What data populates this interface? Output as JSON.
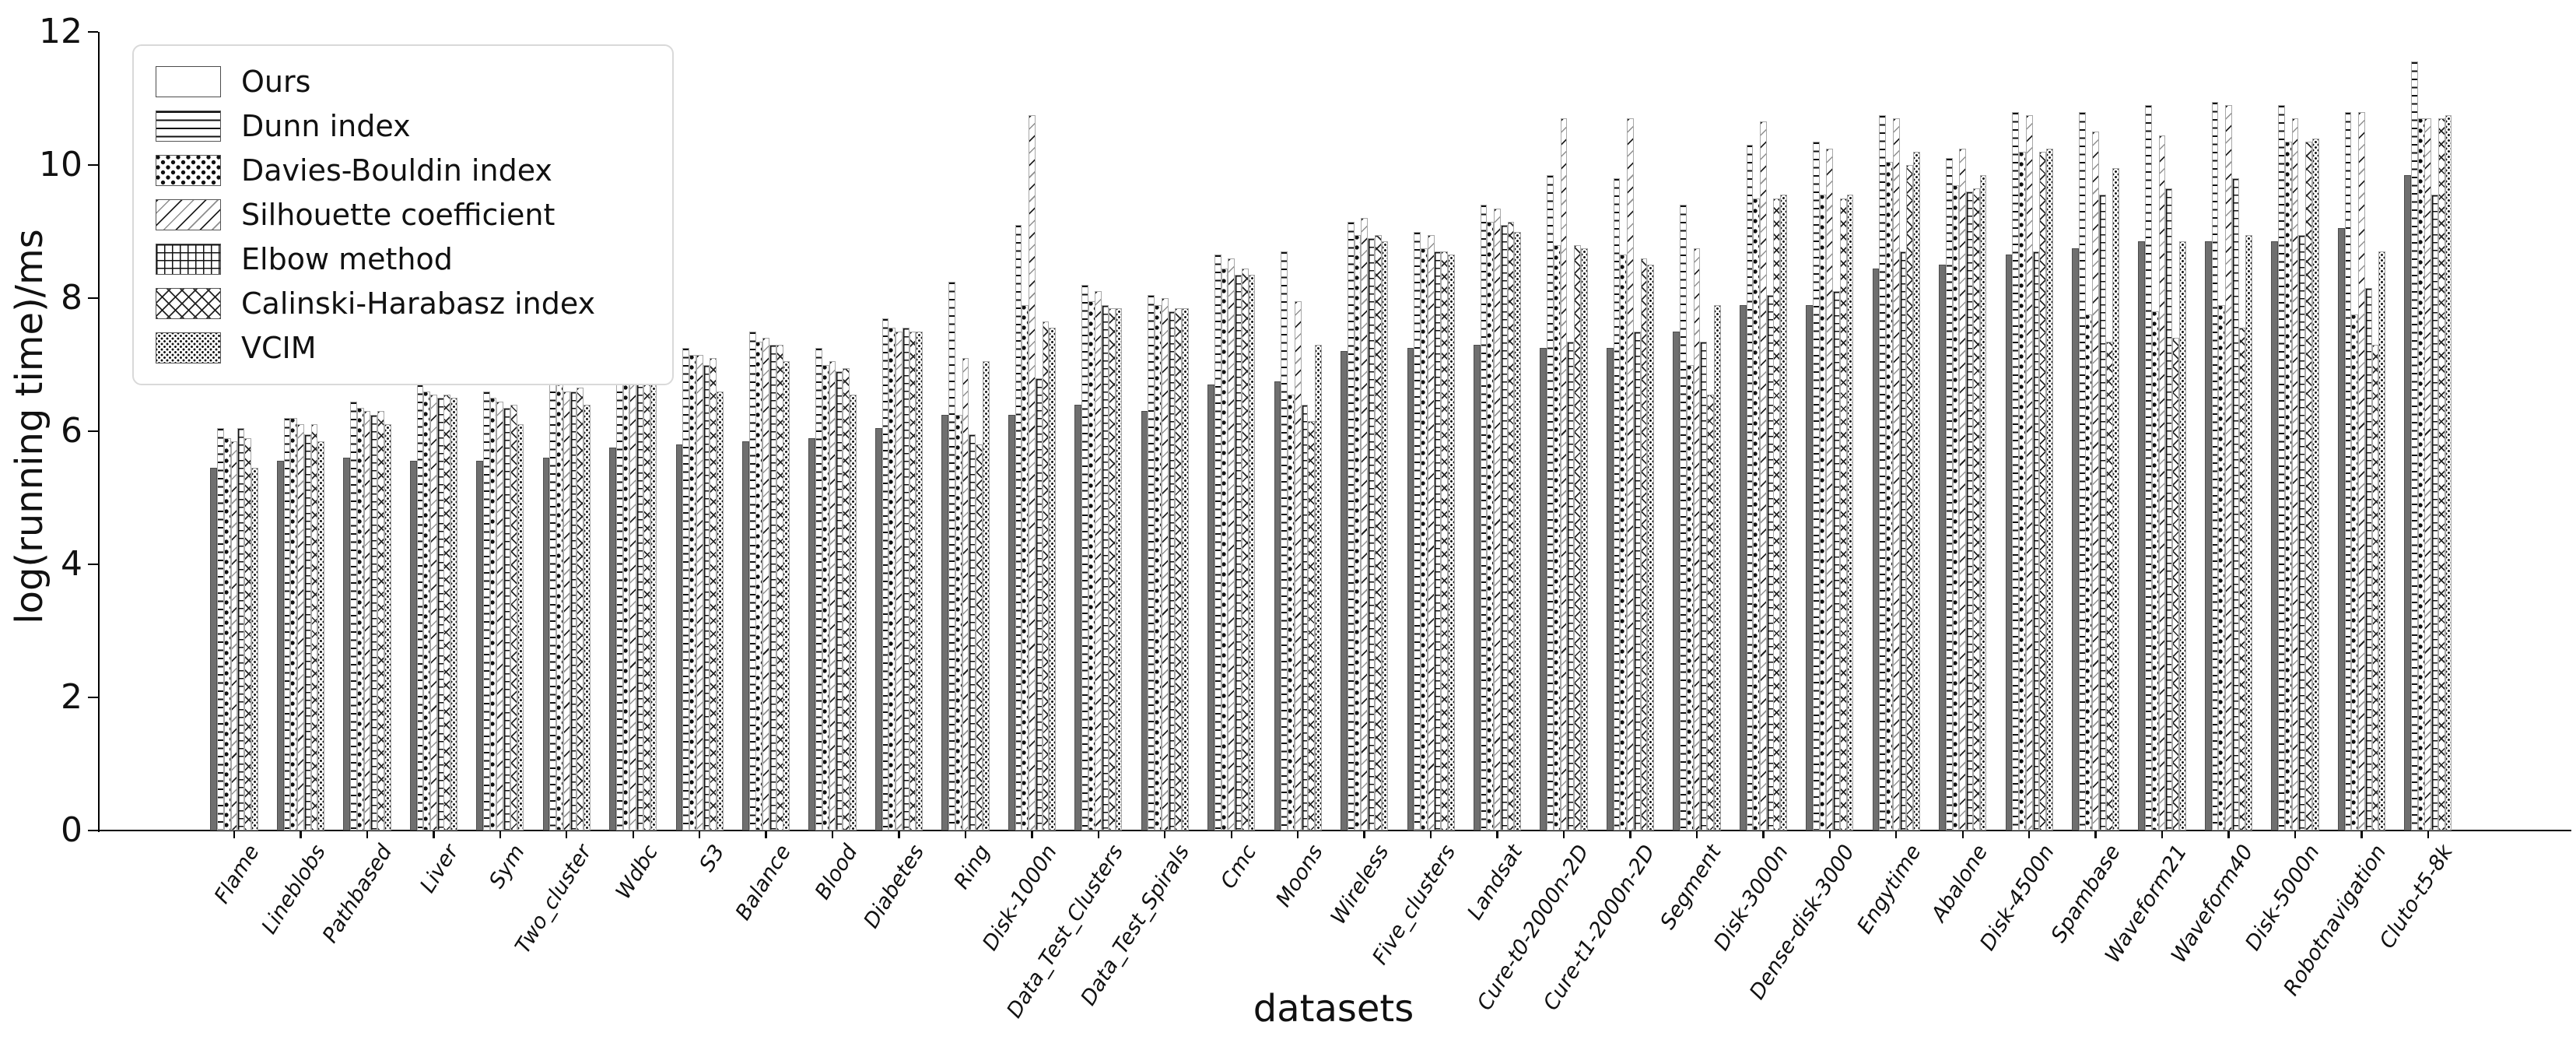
{
  "chart_data": {
    "type": "bar",
    "title": "",
    "xlabel": "datasets",
    "ylabel": "log(running time)/ms",
    "ylim": [
      0,
      12
    ],
    "yticks": [
      0,
      2,
      4,
      6,
      8,
      10,
      12
    ],
    "grid": false,
    "legend_position": "upper-left",
    "colors": {
      "ours_fill": "#6f6f6f",
      "hatch": "#111111",
      "bar_edge": "#a8a8a8",
      "text": "#111111",
      "legend_border": "#d9d9d9"
    },
    "categories": [
      "Flame",
      "Lineblobs",
      "Pathbased",
      "Liver",
      "Sym",
      "Two_cluster",
      "Wdbc",
      "S3",
      "Balance",
      "Blood",
      "Diabetes",
      "Ring",
      "Disk-1000n",
      "Data_Test_Clusters",
      "Data_Test_Spirals",
      "Cmc",
      "Moons",
      "Wireless",
      "Five_clusters",
      "Landsat",
      "Cure-t0-2000n-2D",
      "Cure-t1-2000n-2D",
      "Segment",
      "Disk-3000n",
      "Dense-disk-3000",
      "Engytime",
      "Abalone",
      "Disk-4500n",
      "Spambase",
      "Waveform21",
      "Waveform40",
      "Disk-5000n",
      "Robotnavigation",
      "Cluto-t5-8k"
    ],
    "series": [
      {
        "name": "Ours",
        "pattern": "solid",
        "values": [
          5.45,
          5.55,
          5.6,
          5.55,
          5.55,
          5.6,
          5.75,
          5.8,
          5.85,
          5.9,
          6.05,
          6.25,
          6.25,
          6.4,
          6.3,
          6.7,
          6.75,
          7.2,
          7.25,
          7.3,
          7.25,
          7.25,
          7.5,
          7.9,
          7.9,
          8.45,
          8.5,
          8.65,
          8.75,
          8.85,
          8.85,
          8.85,
          9.05,
          9.85
        ]
      },
      {
        "name": "Dunn index",
        "pattern": "hlines",
        "values": [
          6.05,
          6.2,
          6.45,
          6.7,
          6.6,
          6.85,
          7.35,
          7.25,
          7.5,
          7.25,
          7.7,
          8.25,
          9.1,
          8.2,
          8.05,
          8.65,
          8.7,
          9.15,
          9.0,
          9.4,
          9.85,
          9.8,
          9.4,
          10.3,
          10.35,
          10.75,
          10.1,
          10.8,
          10.8,
          10.9,
          10.95,
          10.9,
          10.8,
          11.55
        ]
      },
      {
        "name": "Davies-Bouldin index",
        "pattern": "stars",
        "values": [
          5.9,
          6.2,
          6.35,
          6.6,
          6.5,
          6.75,
          7.15,
          7.15,
          7.35,
          7.0,
          7.55,
          6.25,
          7.9,
          7.95,
          7.9,
          8.45,
          6.55,
          8.95,
          8.75,
          9.15,
          8.8,
          8.65,
          7.0,
          9.5,
          9.55,
          10.05,
          9.7,
          10.2,
          7.75,
          7.8,
          7.9,
          10.35,
          7.75,
          10.7
        ]
      },
      {
        "name": "Silhouette coefficient",
        "pattern": "diag",
        "values": [
          5.85,
          6.1,
          6.3,
          6.55,
          6.45,
          6.6,
          7.2,
          7.15,
          7.4,
          7.05,
          7.5,
          7.1,
          10.75,
          8.1,
          8.0,
          8.6,
          7.95,
          9.2,
          8.95,
          9.35,
          10.7,
          10.7,
          8.75,
          10.65,
          10.25,
          10.7,
          10.25,
          10.75,
          10.5,
          10.45,
          10.9,
          10.7,
          10.8,
          10.7
        ]
      },
      {
        "name": "Elbow method",
        "pattern": "grid",
        "values": [
          6.05,
          5.95,
          6.25,
          6.5,
          6.35,
          6.6,
          7.15,
          7.0,
          7.3,
          6.9,
          7.55,
          5.95,
          6.8,
          7.9,
          7.8,
          8.35,
          6.4,
          8.9,
          8.7,
          9.1,
          7.35,
          7.5,
          7.35,
          8.05,
          8.1,
          8.7,
          9.6,
          8.7,
          9.55,
          9.65,
          9.8,
          8.95,
          8.15,
          9.55
        ]
      },
      {
        "name": "Calinski-Harabasz index",
        "pattern": "cross",
        "values": [
          5.9,
          6.1,
          6.3,
          6.55,
          6.4,
          6.65,
          7.1,
          7.1,
          7.3,
          6.95,
          7.5,
          5.8,
          7.65,
          7.85,
          7.85,
          8.45,
          6.15,
          8.95,
          8.7,
          9.15,
          8.8,
          8.6,
          6.55,
          9.5,
          9.5,
          10.0,
          9.65,
          10.2,
          7.35,
          7.4,
          7.55,
          10.35,
          7.3,
          10.7
        ]
      },
      {
        "name": "VCIM",
        "pattern": "dots",
        "values": [
          5.45,
          5.85,
          6.1,
          6.5,
          6.1,
          6.4,
          7.35,
          6.6,
          7.05,
          6.55,
          7.5,
          7.05,
          7.55,
          7.85,
          7.85,
          8.35,
          7.3,
          8.85,
          8.65,
          9.0,
          8.75,
          8.5,
          7.9,
          9.55,
          9.55,
          10.2,
          9.85,
          10.25,
          9.95,
          8.85,
          8.95,
          10.4,
          8.7,
          10.75
        ]
      }
    ]
  }
}
